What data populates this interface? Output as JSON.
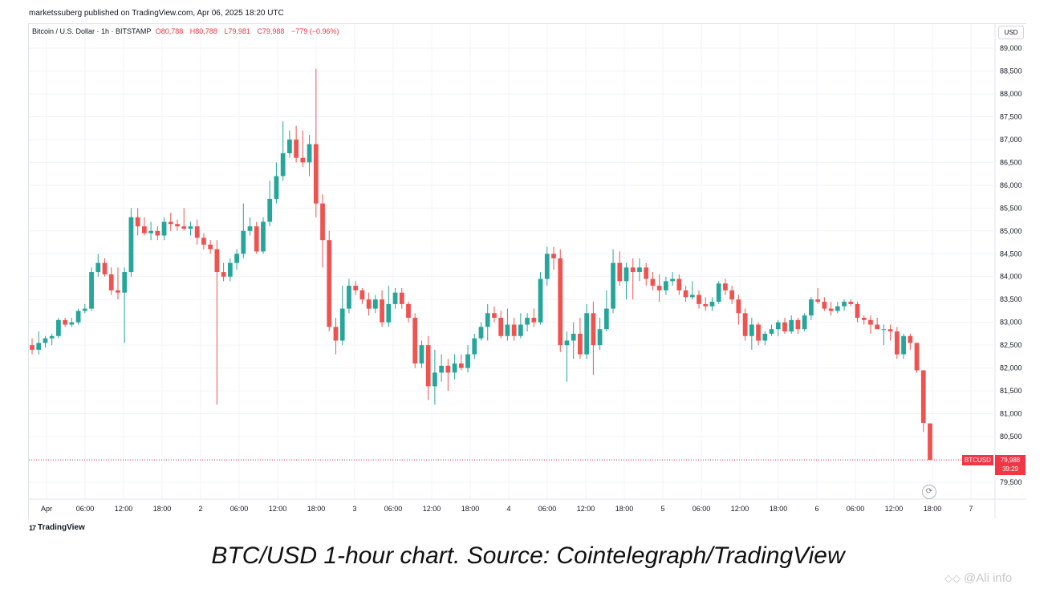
{
  "publisher": "marketssuberg published on TradingView.com, Apr 06, 2025 18:20 UTC",
  "legend": {
    "symbol": "Bitcoin / U.S. Dollar · 1h · BITSTAMP",
    "o": "O80,788",
    "h": "H80,788",
    "l": "L79,981",
    "c": "C79,988",
    "change": "−779 (−0.96%)"
  },
  "currency": "USD",
  "last_price": {
    "ticker": "BTCUSD",
    "value": "79,988",
    "countdown": "39:29"
  },
  "brand": "TradingView",
  "caption": "BTC/USD 1-hour chart. Source: Cointelegraph/TradingView",
  "watermark": "@Ali info",
  "colors": {
    "up": "#26a69a",
    "down": "#ef5350",
    "price_line": "#f23645",
    "grid": "#f0f3fa"
  },
  "chart_data": {
    "type": "candlestick",
    "title": "Bitcoin / U.S. Dollar · 1h · BITSTAMP",
    "ylim": [
      79300,
      89200
    ],
    "y_ticks": [
      79500,
      80000,
      80500,
      81000,
      81500,
      82000,
      82500,
      83000,
      83500,
      84000,
      84500,
      85000,
      85500,
      86000,
      86500,
      87000,
      87500,
      88000,
      88500,
      89000
    ],
    "y_tick_labels": [
      "79,500",
      "80,000",
      "80,500",
      "81,000",
      "81,500",
      "82,000",
      "82,500",
      "83,000",
      "83,500",
      "84,000",
      "84,500",
      "85,000",
      "85,500",
      "86,000",
      "86,500",
      "87,000",
      "87,500",
      "88,000",
      "88,500",
      "89,000"
    ],
    "x_tick_labels": [
      "Apr",
      "06:00",
      "12:00",
      "18:00",
      "2",
      "06:00",
      "12:00",
      "18:00",
      "3",
      "06:00",
      "12:00",
      "18:00",
      "4",
      "06:00",
      "12:00",
      "18:00",
      "5",
      "06:00",
      "12:00",
      "18:00",
      "6",
      "06:00",
      "12:00",
      "18:00",
      "7"
    ],
    "x_tick_hours": [
      0,
      6,
      12,
      18,
      24,
      30,
      36,
      42,
      48,
      54,
      60,
      66,
      72,
      78,
      84,
      90,
      96,
      102,
      108,
      114,
      120,
      126,
      132,
      138,
      144
    ],
    "last_price": 79988,
    "candles": [
      [
        82500,
        82650,
        82300,
        82400
      ],
      [
        82400,
        82800,
        82300,
        82550
      ],
      [
        82550,
        82700,
        82450,
        82650
      ],
      [
        82650,
        82750,
        82500,
        82700
      ],
      [
        82700,
        83100,
        82650,
        83050
      ],
      [
        83050,
        83100,
        82900,
        82950
      ],
      [
        82950,
        83100,
        82900,
        83000
      ],
      [
        83000,
        83300,
        82950,
        83250
      ],
      [
        83250,
        83400,
        83200,
        83300
      ],
      [
        83300,
        84200,
        83250,
        84100
      ],
      [
        84100,
        84500,
        84000,
        84300
      ],
      [
        84300,
        84400,
        84000,
        84050
      ],
      [
        84050,
        84200,
        83600,
        83700
      ],
      [
        83700,
        84200,
        83500,
        83650
      ],
      [
        83650,
        84200,
        82550,
        84100
      ],
      [
        84100,
        85500,
        84000,
        85300
      ],
      [
        85300,
        85500,
        84900,
        85100
      ],
      [
        85100,
        85300,
        84900,
        84950
      ],
      [
        84950,
        85200,
        84800,
        85000
      ],
      [
        85000,
        85100,
        84800,
        84900
      ],
      [
        84900,
        85300,
        84800,
        85200
      ],
      [
        85200,
        85400,
        85000,
        85150
      ],
      [
        85150,
        85250,
        85000,
        85100
      ],
      [
        85100,
        85500,
        85000,
        85050
      ],
      [
        85050,
        85200,
        84900,
        85100
      ],
      [
        85100,
        85250,
        84700,
        84850
      ],
      [
        84850,
        84950,
        84600,
        84700
      ],
      [
        84700,
        84800,
        84500,
        84600
      ],
      [
        84600,
        84800,
        81200,
        84100
      ],
      [
        84100,
        84300,
        83900,
        84000
      ],
      [
        84000,
        84400,
        83900,
        84300
      ],
      [
        84300,
        84600,
        84150,
        84500
      ],
      [
        84500,
        85600,
        84400,
        85000
      ],
      [
        85000,
        85300,
        84900,
        85100
      ],
      [
        85100,
        85200,
        84500,
        84550
      ],
      [
        84550,
        85300,
        84500,
        85200
      ],
      [
        85200,
        86100,
        85100,
        85700
      ],
      [
        85700,
        86500,
        85600,
        86200
      ],
      [
        86200,
        87400,
        86100,
        86700
      ],
      [
        86700,
        87200,
        86600,
        87000
      ],
      [
        87000,
        87300,
        86500,
        86600
      ],
      [
        86600,
        87200,
        86400,
        86500
      ],
      [
        86500,
        87100,
        86200,
        86900
      ],
      [
        86900,
        88550,
        85300,
        85600
      ],
      [
        85600,
        85800,
        84200,
        84800
      ],
      [
        84800,
        85000,
        82800,
        82900
      ],
      [
        82900,
        83100,
        82300,
        82600
      ],
      [
        82600,
        83800,
        82500,
        83300
      ],
      [
        83300,
        83950,
        83200,
        83800
      ],
      [
        83800,
        83900,
        83600,
        83700
      ],
      [
        83700,
        83750,
        83400,
        83500
      ],
      [
        83500,
        83650,
        83150,
        83300
      ],
      [
        83300,
        83600,
        83200,
        83500
      ],
      [
        83500,
        83700,
        82900,
        83000
      ],
      [
        83000,
        83800,
        82900,
        83400
      ],
      [
        83400,
        83750,
        83300,
        83650
      ],
      [
        83650,
        83750,
        83300,
        83400
      ],
      [
        83400,
        83450,
        83000,
        83100
      ],
      [
        83100,
        83200,
        82000,
        82100
      ],
      [
        82100,
        82600,
        82000,
        82500
      ],
      [
        82500,
        82700,
        81300,
        81600
      ],
      [
        81600,
        82400,
        81200,
        81900
      ],
      [
        81900,
        82300,
        81700,
        82050
      ],
      [
        82050,
        82200,
        81500,
        81900
      ],
      [
        81900,
        82300,
        81750,
        82100
      ],
      [
        82100,
        82300,
        81950,
        82000
      ],
      [
        82000,
        82500,
        81900,
        82300
      ],
      [
        82300,
        82750,
        82200,
        82650
      ],
      [
        82650,
        83000,
        82600,
        82900
      ],
      [
        82900,
        83400,
        82600,
        83200
      ],
      [
        83200,
        83350,
        83000,
        83100
      ],
      [
        83100,
        83250,
        82650,
        82700
      ],
      [
        82700,
        83300,
        82600,
        82950
      ],
      [
        82950,
        83100,
        82600,
        82700
      ],
      [
        82700,
        83200,
        82650,
        82950
      ],
      [
        82950,
        83200,
        82800,
        83100
      ],
      [
        83100,
        83300,
        82900,
        83000
      ],
      [
        83000,
        84100,
        82950,
        83950
      ],
      [
        83950,
        84650,
        83800,
        84500
      ],
      [
        84500,
        84650,
        84150,
        84400
      ],
      [
        84400,
        84600,
        82350,
        82500
      ],
      [
        82500,
        82800,
        81700,
        82600
      ],
      [
        82600,
        83000,
        82200,
        82750
      ],
      [
        82750,
        83100,
        82200,
        82300
      ],
      [
        82300,
        83400,
        82200,
        83200
      ],
      [
        83200,
        83450,
        81850,
        82500
      ],
      [
        82500,
        83100,
        82400,
        82850
      ],
      [
        82850,
        83700,
        82800,
        83300
      ],
      [
        83300,
        84600,
        83200,
        84300
      ],
      [
        84300,
        84550,
        83800,
        83900
      ],
      [
        83900,
        84300,
        83500,
        84200
      ],
      [
        84200,
        84400,
        83500,
        84100
      ],
      [
        84100,
        84400,
        83900,
        84200
      ],
      [
        84200,
        84300,
        83800,
        83950
      ],
      [
        83950,
        84100,
        83700,
        83800
      ],
      [
        83800,
        84050,
        83450,
        83700
      ],
      [
        83700,
        84000,
        83600,
        83900
      ],
      [
        83900,
        84100,
        83800,
        83950
      ],
      [
        83950,
        84050,
        83600,
        83700
      ],
      [
        83700,
        83800,
        83450,
        83550
      ],
      [
        83550,
        83900,
        83500,
        83600
      ],
      [
        83600,
        83700,
        83300,
        83400
      ],
      [
        83400,
        83550,
        83250,
        83350
      ],
      [
        83350,
        83550,
        83250,
        83450
      ],
      [
        83450,
        83900,
        83400,
        83850
      ],
      [
        83850,
        83950,
        83600,
        83700
      ],
      [
        83700,
        83800,
        83400,
        83500
      ],
      [
        83500,
        83600,
        82950,
        83200
      ],
      [
        83200,
        83300,
        82600,
        82700
      ],
      [
        82700,
        83100,
        82400,
        82950
      ],
      [
        82950,
        83000,
        82500,
        82600
      ],
      [
        82600,
        82800,
        82500,
        82750
      ],
      [
        82750,
        82950,
        82700,
        82850
      ],
      [
        82850,
        83050,
        82700,
        83000
      ],
      [
        83000,
        83100,
        82750,
        82800
      ],
      [
        82800,
        83150,
        82750,
        83050
      ],
      [
        83050,
        83100,
        82750,
        82850
      ],
      [
        82850,
        83200,
        82800,
        83150
      ],
      [
        83150,
        83550,
        83050,
        83500
      ],
      [
        83500,
        83750,
        83400,
        83450
      ],
      [
        83450,
        83550,
        83250,
        83300
      ],
      [
        83300,
        83450,
        83150,
        83250
      ],
      [
        83250,
        83450,
        83200,
        83350
      ],
      [
        83350,
        83500,
        83250,
        83450
      ],
      [
        83450,
        83500,
        83350,
        83400
      ],
      [
        83400,
        83450,
        83000,
        83100
      ],
      [
        83100,
        83150,
        82950,
        83050
      ],
      [
        83050,
        83150,
        82750,
        82950
      ],
      [
        82950,
        83100,
        82850,
        82850
      ],
      [
        82850,
        82950,
        82500,
        82850
      ],
      [
        82850,
        82950,
        82600,
        82800
      ],
      [
        82800,
        82900,
        82200,
        82300
      ],
      [
        82300,
        82750,
        82200,
        82700
      ],
      [
        82700,
        82750,
        82400,
        82550
      ],
      [
        82550,
        82550,
        81900,
        81950
      ],
      [
        81950,
        81950,
        80600,
        80800
      ],
      [
        80788,
        80788,
        79981,
        79988
      ]
    ]
  }
}
